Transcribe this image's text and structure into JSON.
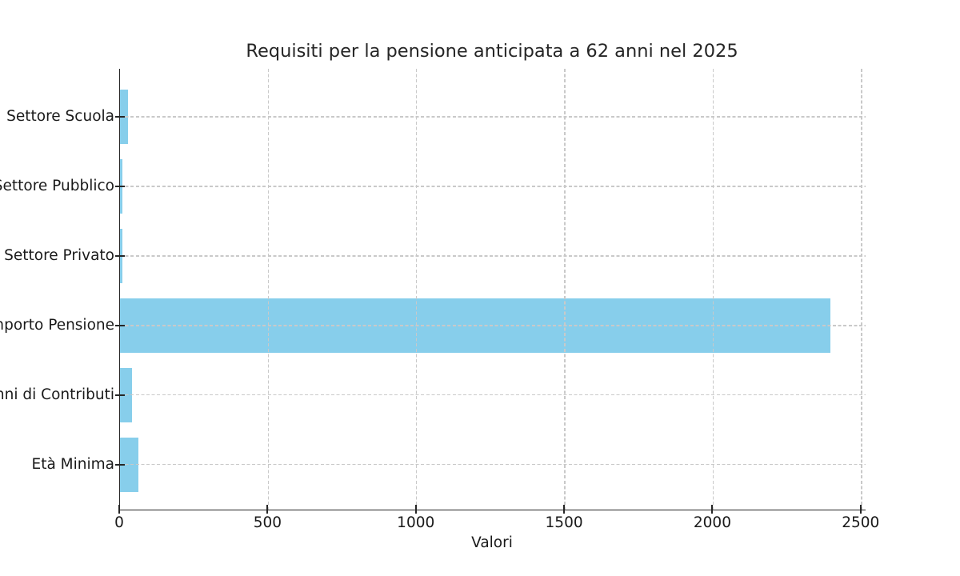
{
  "chart_data": {
    "type": "bar",
    "orientation": "horizontal",
    "title": "Requisiti per la pensione anticipata a 62 anni nel 2025",
    "xlabel": "Valori",
    "ylabel": "",
    "categories": [
      "Settore Scuola",
      "Settore Pubblico",
      "Settore Privato",
      "Importo Pensione",
      "Anni di Contributi",
      "Età Minima"
    ],
    "category_order": "top to bottom",
    "values": [
      28,
      9,
      7,
      2394.44,
      41,
      62
    ],
    "xlim": [
      0,
      2514
    ],
    "xticks": [
      0,
      500,
      1000,
      1500,
      2000,
      2500
    ],
    "bar_color": "#87CEEB",
    "grid": true,
    "grid_color": "#c9c9c9",
    "grid_style": "dashed, drawn over bars",
    "axis_color": "#262626",
    "text_color": "#1a1a1a",
    "legend": false
  }
}
